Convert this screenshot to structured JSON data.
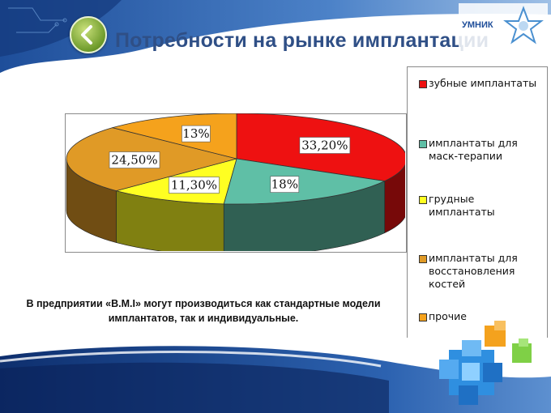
{
  "slide": {
    "title": "Потребности на рынке имплантации",
    "caption": "В предприятии «B.M.I» могут производиться как стандартные модели имплантатов, так и индивидуальные.",
    "logo": {
      "text": "УМНИК",
      "icon": "star-logo-icon"
    },
    "back_icon": "chevron-left-icon"
  },
  "chart_data": {
    "type": "pie",
    "style": "3d",
    "legend_position": "right",
    "slices": [
      {
        "label": "зубные имплантаты",
        "value": 33.2,
        "data_label": "33,20%",
        "color": "#ee1111"
      },
      {
        "label": "имплантаты для маск-терапии",
        "value": 18,
        "data_label": "18%",
        "color": "#5fbfa6"
      },
      {
        "label": "грудные имплантаты",
        "value": 11.3,
        "data_label": "11,30%",
        "color": "#ffff22"
      },
      {
        "label": "имплантаты для восстановления костей",
        "value": 24.5,
        "data_label": "24,50%",
        "color": "#e09a26"
      },
      {
        "label": "прочие",
        "value": 13,
        "data_label": "13%",
        "color": "#f5a21c"
      }
    ]
  }
}
